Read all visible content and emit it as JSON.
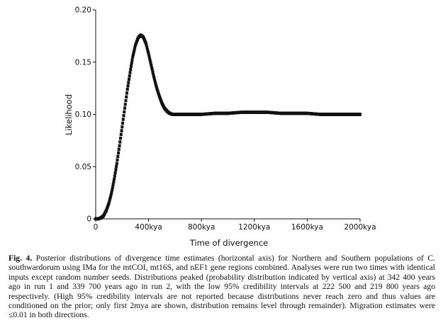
{
  "chart_data": {
    "type": "scatter",
    "xlabel": "Time of divergence",
    "ylabel": "Likelihood",
    "xlim": [
      0,
      2000
    ],
    "ylim": [
      0,
      0.2
    ],
    "x_ticks": [
      {
        "value": 0,
        "label": "0"
      },
      {
        "value": 400,
        "label": "400kya"
      },
      {
        "value": 800,
        "label": "800kya"
      },
      {
        "value": 1200,
        "label": "1200kya"
      },
      {
        "value": 1600,
        "label": "1600kya"
      },
      {
        "value": 2000,
        "label": "2000kya"
      }
    ],
    "y_ticks": [
      {
        "value": 0,
        "label": "0"
      },
      {
        "value": 0.05,
        "label": "0.05"
      },
      {
        "value": 0.1,
        "label": "0.10"
      },
      {
        "value": 0.15,
        "label": "0.15"
      },
      {
        "value": 0.2,
        "label": "0.20"
      }
    ],
    "grid": false,
    "series": [
      {
        "color": "#111111",
        "points": [
          [
            0,
            0
          ],
          [
            20,
            0
          ],
          [
            40,
            0.001
          ],
          [
            60,
            0.003
          ],
          [
            80,
            0.008
          ],
          [
            100,
            0.015
          ],
          [
            120,
            0.025
          ],
          [
            140,
            0.038
          ],
          [
            160,
            0.053
          ],
          [
            180,
            0.07
          ],
          [
            200,
            0.088
          ],
          [
            220,
            0.106
          ],
          [
            240,
            0.124
          ],
          [
            260,
            0.14
          ],
          [
            280,
            0.155
          ],
          [
            300,
            0.166
          ],
          [
            320,
            0.173
          ],
          [
            340,
            0.176
          ],
          [
            360,
            0.174
          ],
          [
            380,
            0.168
          ],
          [
            400,
            0.158
          ],
          [
            420,
            0.147
          ],
          [
            440,
            0.136
          ],
          [
            460,
            0.126
          ],
          [
            480,
            0.118
          ],
          [
            500,
            0.111
          ],
          [
            520,
            0.106
          ],
          [
            540,
            0.103
          ],
          [
            560,
            0.101
          ],
          [
            580,
            0.1
          ],
          [
            600,
            0.1
          ],
          [
            700,
            0.1
          ],
          [
            800,
            0.1
          ],
          [
            900,
            0.101
          ],
          [
            1000,
            0.101
          ],
          [
            1100,
            0.102
          ],
          [
            1200,
            0.102
          ],
          [
            1300,
            0.102
          ],
          [
            1400,
            0.101
          ],
          [
            1500,
            0.101
          ],
          [
            1600,
            0.101
          ],
          [
            1700,
            0.1
          ],
          [
            1800,
            0.1
          ],
          [
            1900,
            0.1
          ],
          [
            2000,
            0.1
          ]
        ]
      }
    ]
  },
  "caption": {
    "fig_label": "Fig. 4.",
    "text": " Posterior distributions of divergence time estimates (horizontal axis) for Northern and Southern populations of C. southwardorum using IMa for the mtCOI, mt16S, and nEF1 gene regions combined. Analyses were run two times with identical inputs except random number seeds. Distributions peaked (probability distribution indicated by vertical axis) at 342 400 years ago in run 1 and 339 700 years ago in run 2, with the low 95% credibility intervals at 222 500 and 219 800 years ago respectively. (High 95% credibility intervals are not reported because distributions never reach zero and thus values are conditioned on the prior; only first 2mya are shown, distribution remains level through remainder). Migration estimates were ≤0.01 in both directions."
  }
}
